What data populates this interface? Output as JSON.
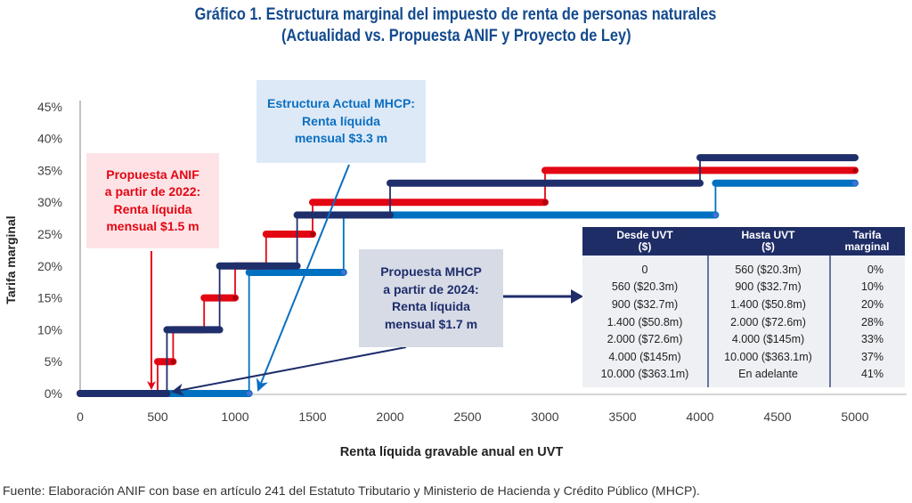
{
  "chart_data": {
    "type": "line",
    "subtype": "step",
    "title": "Gráfico 1. Estructura marginal del impuesto de renta de personas naturales",
    "subtitle": "(Actualidad vs. Propuesta ANIF y Proyecto de Ley)",
    "xlabel": "Renta líquida gravable anual en UVT",
    "ylabel": "Tarifa marginal",
    "xlim": [
      0,
      5000
    ],
    "ylim": [
      0,
      45
    ],
    "grid": false,
    "x_ticks": [
      0,
      500,
      1000,
      1500,
      2000,
      2500,
      3000,
      3500,
      4000,
      4500,
      5000
    ],
    "x_tick_labels": [
      "0",
      "500",
      "1000",
      "1500",
      "2000",
      "2500",
      "3000",
      "3500",
      "4000",
      "4500",
      "5000"
    ],
    "y_ticks": [
      0,
      5,
      10,
      15,
      20,
      25,
      30,
      35,
      40,
      45
    ],
    "y_tick_labels": [
      "0%",
      "5%",
      "10%",
      "15%",
      "20%",
      "25%",
      "30%",
      "35%",
      "40%",
      "45%"
    ],
    "series": [
      {
        "id": "actual",
        "name": "Estructura Actual MHCP",
        "color": "#0070c0",
        "marker_color": "#4a6fd2",
        "steps": [
          {
            "from": 0,
            "to": 1090,
            "rate": 0
          },
          {
            "from": 1090,
            "to": 1700,
            "rate": 19
          },
          {
            "from": 1700,
            "to": 4100,
            "rate": 28
          },
          {
            "from": 4100,
            "to": 5000,
            "rate": 33
          }
        ]
      },
      {
        "id": "anif",
        "name": "Propuesta ANIF a partir de 2022",
        "color": "#e30613",
        "marker_color": "#a8000c",
        "steps": [
          {
            "from": 0,
            "to": 500,
            "rate": 0
          },
          {
            "from": 500,
            "to": 600,
            "rate": 5
          },
          {
            "from": 600,
            "to": 800,
            "rate": 10
          },
          {
            "from": 800,
            "to": 1000,
            "rate": 15
          },
          {
            "from": 1000,
            "to": 1200,
            "rate": 20
          },
          {
            "from": 1200,
            "to": 1500,
            "rate": 25
          },
          {
            "from": 1500,
            "to": 3000,
            "rate": 30
          },
          {
            "from": 3000,
            "to": 5000,
            "rate": 35
          }
        ]
      },
      {
        "id": "mhcp",
        "name": "Propuesta MHCP a partir de 2024",
        "color": "#1f2f6b",
        "marker_color": null,
        "steps": [
          {
            "from": 0,
            "to": 560,
            "rate": 0
          },
          {
            "from": 560,
            "to": 900,
            "rate": 10
          },
          {
            "from": 900,
            "to": 1400,
            "rate": 20
          },
          {
            "from": 1400,
            "to": 2000,
            "rate": 28
          },
          {
            "from": 2000,
            "to": 4000,
            "rate": 33
          },
          {
            "from": 4000,
            "to": 5000,
            "rate": 37
          }
        ]
      }
    ]
  },
  "annotations": {
    "anif": {
      "lines": [
        "Propuesta ANIF",
        "a partir de 2022:",
        "Renta líquida",
        "mensual $1.5 m"
      ]
    },
    "actual": {
      "lines": [
        "Estructura Actual MHCP:",
        "Renta líquida",
        "mensual $3.3 m"
      ]
    },
    "mhcp": {
      "lines": [
        "Propuesta MHCP",
        "a partir de 2024:",
        "Renta líquida",
        "mensual $1.7 m"
      ]
    }
  },
  "table": {
    "headers": [
      {
        "lines": [
          "Desde UVT",
          "($)"
        ]
      },
      {
        "lines": [
          "Hasta UVT",
          "($)"
        ]
      },
      {
        "lines": [
          "Tarifa",
          "marginal"
        ]
      }
    ],
    "rows": [
      [
        "0",
        "560 ($20.3m)",
        "0%"
      ],
      [
        "560 ($20.3m)",
        "900 ($32.7m)",
        "10%"
      ],
      [
        "900 ($32.7m)",
        "1.400 ($50.8m)",
        "20%"
      ],
      [
        "1.400 ($50.8m)",
        "2.000 ($72.6m)",
        "28%"
      ],
      [
        "2.000 ($72.6m)",
        "4.000 ($145m)",
        "33%"
      ],
      [
        "4.000 ($145m)",
        "10.000 ($363.1m)",
        "37%"
      ],
      [
        "10.000 ($363.1m)",
        "En adelante",
        "41%"
      ]
    ]
  },
  "source": "Fuente: Elaboración ANIF con base en artículo 241 del Estatuto Tributario y Ministerio de Hacienda y Crédito Público (MHCP)."
}
